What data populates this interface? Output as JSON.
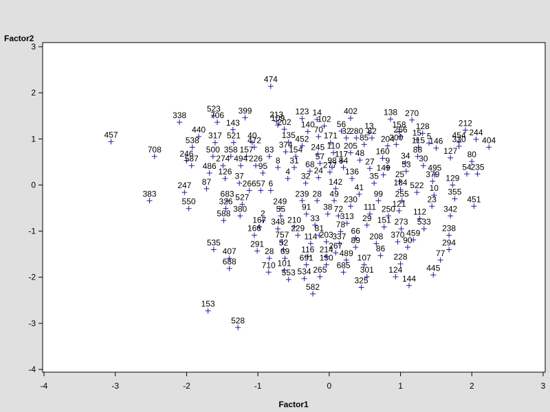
{
  "chart_data": {
    "type": "scatter",
    "title": "",
    "xlabel": "Factor1",
    "ylabel": "Factor2",
    "xlim": [
      -4,
      3
    ],
    "ylim": [
      -4,
      3
    ],
    "xticks": [
      "-4",
      "-3",
      "-2",
      "-1",
      "0",
      "1",
      "2",
      "3"
    ],
    "yticks": [
      "-4",
      "-3",
      "-2",
      "-1",
      "0",
      "1",
      "2",
      "3"
    ],
    "grid": false,
    "marker": "+",
    "marker_color": "#1a1aa6",
    "points": [
      {
        "label": "474",
        "x": -0.82,
        "y": 2.14
      },
      {
        "label": "213",
        "x": -0.74,
        "y": 1.38
      },
      {
        "label": "523",
        "x": -1.62,
        "y": 1.5
      },
      {
        "label": "399",
        "x": -1.18,
        "y": 1.46
      },
      {
        "label": "123",
        "x": -0.38,
        "y": 1.44
      },
      {
        "label": "14",
        "x": -0.17,
        "y": 1.42
      },
      {
        "label": "402",
        "x": 0.3,
        "y": 1.45
      },
      {
        "label": "138",
        "x": 0.86,
        "y": 1.43
      },
      {
        "label": "270",
        "x": 1.16,
        "y": 1.41
      },
      {
        "label": "338",
        "x": -2.1,
        "y": 1.36
      },
      {
        "label": "706",
        "x": -1.57,
        "y": 1.36
      },
      {
        "label": "109",
        "x": -0.72,
        "y": 1.3
      },
      {
        "label": "102",
        "x": -0.07,
        "y": 1.28
      },
      {
        "label": "158",
        "x": 0.98,
        "y": 1.16
      },
      {
        "label": "212",
        "x": 1.91,
        "y": 1.19
      },
      {
        "label": "143",
        "x": -1.35,
        "y": 1.2
      },
      {
        "label": "202",
        "x": -0.63,
        "y": 1.21
      },
      {
        "label": "140",
        "x": -0.3,
        "y": 1.16
      },
      {
        "label": "56",
        "x": 0.17,
        "y": 1.17
      },
      {
        "label": "13",
        "x": 0.56,
        "y": 1.13
      },
      {
        "label": "128",
        "x": 1.31,
        "y": 1.12
      },
      {
        "label": "440",
        "x": -1.83,
        "y": 1.05
      },
      {
        "label": "70",
        "x": -0.15,
        "y": 1.05
      },
      {
        "label": "32",
        "x": 0.24,
        "y": 1.02
      },
      {
        "label": "280",
        "x": 0.38,
        "y": 1.02
      },
      {
        "label": "82",
        "x": 0.6,
        "y": 1.02
      },
      {
        "label": "266",
        "x": 1.0,
        "y": 1.05
      },
      {
        "label": "15",
        "x": 1.23,
        "y": 0.98
      },
      {
        "label": "244",
        "x": 2.06,
        "y": 0.99
      },
      {
        "label": "457",
        "x": -3.06,
        "y": 0.94
      },
      {
        "label": "317",
        "x": -1.6,
        "y": 0.92
      },
      {
        "label": "521",
        "x": -1.34,
        "y": 0.92
      },
      {
        "label": "40",
        "x": -1.08,
        "y": 0.92
      },
      {
        "label": "135",
        "x": -0.57,
        "y": 0.93
      },
      {
        "label": "171",
        "x": 0.02,
        "y": 0.92
      },
      {
        "label": "5",
        "x": 1.4,
        "y": 0.91
      },
      {
        "label": "454",
        "x": 1.82,
        "y": 0.93
      },
      {
        "label": "538",
        "x": -1.92,
        "y": 0.82
      },
      {
        "label": "472",
        "x": -1.05,
        "y": 0.82
      },
      {
        "label": "452",
        "x": -0.38,
        "y": 0.85
      },
      {
        "label": "85",
        "x": 0.49,
        "y": 0.88
      },
      {
        "label": "204",
        "x": 0.82,
        "y": 0.85
      },
      {
        "label": "300",
        "x": 0.94,
        "y": 0.88
      },
      {
        "label": "115",
        "x": 1.25,
        "y": 0.82
      },
      {
        "label": "146",
        "x": 1.5,
        "y": 0.8
      },
      {
        "label": "330",
        "x": 1.82,
        "y": 0.84
      },
      {
        "label": "404",
        "x": 2.24,
        "y": 0.82
      },
      {
        "label": "708",
        "x": -2.45,
        "y": 0.62
      },
      {
        "label": "500",
        "x": -1.63,
        "y": 0.62
      },
      {
        "label": "358",
        "x": -1.38,
        "y": 0.62
      },
      {
        "label": "157",
        "x": -1.16,
        "y": 0.62
      },
      {
        "label": "83",
        "x": -0.84,
        "y": 0.62
      },
      {
        "label": "374",
        "x": -0.61,
        "y": 0.72
      },
      {
        "label": "154",
        "x": -0.47,
        "y": 0.62
      },
      {
        "label": "245",
        "x": -0.16,
        "y": 0.67
      },
      {
        "label": "110",
        "x": 0.06,
        "y": 0.7
      },
      {
        "label": "205",
        "x": 0.3,
        "y": 0.7
      },
      {
        "label": "88",
        "x": 1.24,
        "y": 0.62
      },
      {
        "label": "127",
        "x": 1.7,
        "y": 0.59
      },
      {
        "label": "246",
        "x": -2.0,
        "y": 0.53
      },
      {
        "label": "57",
        "x": -0.13,
        "y": 0.47
      },
      {
        "label": "117",
        "x": 0.17,
        "y": 0.52
      },
      {
        "label": "48",
        "x": 0.43,
        "y": 0.54
      },
      {
        "label": "160",
        "x": 0.75,
        "y": 0.58
      },
      {
        "label": "34",
        "x": 1.07,
        "y": 0.48
      },
      {
        "label": "80",
        "x": 2.0,
        "y": 0.51
      },
      {
        "label": "587",
        "x": -1.93,
        "y": 0.42
      },
      {
        "label": "274",
        "x": -1.49,
        "y": 0.42
      },
      {
        "label": "494",
        "x": -1.24,
        "y": 0.42
      },
      {
        "label": "226",
        "x": -1.03,
        "y": 0.42
      },
      {
        "label": "8",
        "x": -0.72,
        "y": 0.38
      },
      {
        "label": "31",
        "x": -0.49,
        "y": 0.38
      },
      {
        "label": "98",
        "x": 0.04,
        "y": 0.38
      },
      {
        "label": "84",
        "x": 0.2,
        "y": 0.38
      },
      {
        "label": "27",
        "x": 0.57,
        "y": 0.36
      },
      {
        "label": "9",
        "x": 0.82,
        "y": 0.38
      },
      {
        "label": "30",
        "x": 1.32,
        "y": 0.42
      },
      {
        "label": "486",
        "x": -1.68,
        "y": 0.26
      },
      {
        "label": "95",
        "x": -0.93,
        "y": 0.26
      },
      {
        "label": "68",
        "x": -0.27,
        "y": 0.3
      },
      {
        "label": "277",
        "x": 0.01,
        "y": 0.28
      },
      {
        "label": "53",
        "x": 1.08,
        "y": 0.3
      },
      {
        "label": "54",
        "x": 1.93,
        "y": 0.24
      },
      {
        "label": "235",
        "x": 2.08,
        "y": 0.24
      },
      {
        "label": "126",
        "x": -1.46,
        "y": 0.14
      },
      {
        "label": "4",
        "x": -0.58,
        "y": 0.14
      },
      {
        "label": "24",
        "x": -0.15,
        "y": 0.16
      },
      {
        "label": "136",
        "x": 0.32,
        "y": 0.14
      },
      {
        "label": "149",
        "x": 0.76,
        "y": 0.22
      },
      {
        "label": "495",
        "x": 1.48,
        "y": 0.22
      },
      {
        "label": "37",
        "x": -1.26,
        "y": 0.04
      },
      {
        "label": "32",
        "x": -0.33,
        "y": 0.04
      },
      {
        "label": "35",
        "x": 0.63,
        "y": 0.04
      },
      {
        "label": "25",
        "x": 0.99,
        "y": 0.08
      },
      {
        "label": "379",
        "x": 1.45,
        "y": 0.08
      },
      {
        "label": "129",
        "x": 1.73,
        "y": 0.0
      },
      {
        "label": "247",
        "x": -2.03,
        "y": -0.16
      },
      {
        "label": "87",
        "x": -1.72,
        "y": -0.08
      },
      {
        "label": "266",
        "x": -1.12,
        "y": -0.12
      },
      {
        "label": "57",
        "x": -0.96,
        "y": -0.12
      },
      {
        "label": "6",
        "x": -0.82,
        "y": -0.12
      },
      {
        "label": "142",
        "x": 0.09,
        "y": -0.08
      },
      {
        "label": "41",
        "x": 0.42,
        "y": -0.2
      },
      {
        "label": "184",
        "x": 1.0,
        "y": -0.1
      },
      {
        "label": "522",
        "x": 1.23,
        "y": -0.16
      },
      {
        "label": "10",
        "x": 1.47,
        "y": -0.22
      },
      {
        "label": "383",
        "x": -2.52,
        "y": -0.34
      },
      {
        "label": "683",
        "x": -1.43,
        "y": -0.34
      },
      {
        "label": "239",
        "x": -0.38,
        "y": -0.34
      },
      {
        "label": "28",
        "x": -0.17,
        "y": -0.34
      },
      {
        "label": "49",
        "x": 0.07,
        "y": -0.34
      },
      {
        "label": "99",
        "x": 0.69,
        "y": -0.34
      },
      {
        "label": "255",
        "x": 1.02,
        "y": -0.34
      },
      {
        "label": "355",
        "x": 1.76,
        "y": -0.3
      },
      {
        "label": "550",
        "x": -1.97,
        "y": -0.51
      },
      {
        "label": "326",
        "x": -1.45,
        "y": -0.51
      },
      {
        "label": "527",
        "x": -1.22,
        "y": -0.42
      },
      {
        "label": "249",
        "x": -0.69,
        "y": -0.51
      },
      {
        "label": "230",
        "x": 0.3,
        "y": -0.46
      },
      {
        "label": "121",
        "x": 0.98,
        "y": -0.56
      },
      {
        "label": "23",
        "x": 1.44,
        "y": -0.46
      },
      {
        "label": "451",
        "x": 2.03,
        "y": -0.46
      },
      {
        "label": "380",
        "x": -1.25,
        "y": -0.67
      },
      {
        "label": "55",
        "x": -0.68,
        "y": -0.67
      },
      {
        "label": "91",
        "x": -0.32,
        "y": -0.63
      },
      {
        "label": "38",
        "x": -0.02,
        "y": -0.63
      },
      {
        "label": "72",
        "x": 0.13,
        "y": -0.67
      },
      {
        "label": "111",
        "x": 0.57,
        "y": -0.63
      },
      {
        "label": "250",
        "x": 0.83,
        "y": -0.67
      },
      {
        "label": "342",
        "x": 1.7,
        "y": -0.67
      },
      {
        "label": "588",
        "x": -1.48,
        "y": -0.77
      },
      {
        "label": "2",
        "x": -0.93,
        "y": -0.77
      },
      {
        "label": "112",
        "x": 1.27,
        "y": -0.73
      },
      {
        "label": "167",
        "x": -0.98,
        "y": -0.91
      },
      {
        "label": "348",
        "x": -0.72,
        "y": -0.95
      },
      {
        "label": "210",
        "x": -0.49,
        "y": -0.91
      },
      {
        "label": "33",
        "x": -0.2,
        "y": -0.87
      },
      {
        "label": "313",
        "x": 0.25,
        "y": -0.83
      },
      {
        "label": "29",
        "x": 0.53,
        "y": -0.87
      },
      {
        "label": "151",
        "x": 0.77,
        "y": -0.91
      },
      {
        "label": "273",
        "x": 1.01,
        "y": -0.95
      },
      {
        "label": "533",
        "x": 1.33,
        "y": -0.95
      },
      {
        "label": "166",
        "x": -1.05,
        "y": -1.09
      },
      {
        "label": "229",
        "x": -0.44,
        "y": -1.09
      },
      {
        "label": "81",
        "x": -0.14,
        "y": -1.09
      },
      {
        "label": "78",
        "x": 0.16,
        "y": -1.01
      },
      {
        "label": "238",
        "x": 1.68,
        "y": -1.09
      },
      {
        "label": "757",
        "x": -0.66,
        "y": -1.23
      },
      {
        "label": "203",
        "x": -0.04,
        "y": -1.23
      },
      {
        "label": "114",
        "x": -0.26,
        "y": -1.27
      },
      {
        "label": "337",
        "x": 0.14,
        "y": -1.27
      },
      {
        "label": "66",
        "x": 0.37,
        "y": -1.15
      },
      {
        "label": "208",
        "x": 0.66,
        "y": -1.27
      },
      {
        "label": "370",
        "x": 0.96,
        "y": -1.23
      },
      {
        "label": "459",
        "x": 1.18,
        "y": -1.19
      },
      {
        "label": "535",
        "x": -1.62,
        "y": -1.4
      },
      {
        "label": "291",
        "x": -1.01,
        "y": -1.43
      },
      {
        "label": "52",
        "x": -0.64,
        "y": -1.4
      },
      {
        "label": "267",
        "x": 0.09,
        "y": -1.47
      },
      {
        "label": "89",
        "x": 0.37,
        "y": -1.35
      },
      {
        "label": "90",
        "x": 1.1,
        "y": -1.35
      },
      {
        "label": "294",
        "x": 1.68,
        "y": -1.4
      },
      {
        "label": "407",
        "x": -1.4,
        "y": -1.59
      },
      {
        "label": "28",
        "x": -0.84,
        "y": -1.59
      },
      {
        "label": "69",
        "x": -0.62,
        "y": -1.59
      },
      {
        "label": "116",
        "x": -0.3,
        "y": -1.55
      },
      {
        "label": "214",
        "x": -0.04,
        "y": -1.55
      },
      {
        "label": "489",
        "x": 0.24,
        "y": -1.63
      },
      {
        "label": "86",
        "x": 0.72,
        "y": -1.53
      },
      {
        "label": "77",
        "x": 1.56,
        "y": -1.63
      },
      {
        "label": "688",
        "x": -1.4,
        "y": -1.81
      },
      {
        "label": "691",
        "x": -0.32,
        "y": -1.73
      },
      {
        "label": "150",
        "x": -0.04,
        "y": -1.73
      },
      {
        "label": "107",
        "x": 0.49,
        "y": -1.73
      },
      {
        "label": "228",
        "x": 1.0,
        "y": -1.71
      },
      {
        "label": "710",
        "x": -0.85,
        "y": -1.89
      },
      {
        "label": "101",
        "x": -0.63,
        "y": -1.85
      },
      {
        "label": "685",
        "x": 0.2,
        "y": -1.89
      },
      {
        "label": "445",
        "x": 1.46,
        "y": -1.95
      },
      {
        "label": "553",
        "x": -0.57,
        "y": -2.05
      },
      {
        "label": "534",
        "x": -0.35,
        "y": -2.03
      },
      {
        "label": "265",
        "x": -0.13,
        "y": -1.99
      },
      {
        "label": "301",
        "x": 0.53,
        "y": -1.99
      },
      {
        "label": "124",
        "x": 0.93,
        "y": -1.99
      },
      {
        "label": "144",
        "x": 1.12,
        "y": -2.18
      },
      {
        "label": "325",
        "x": 0.45,
        "y": -2.22
      },
      {
        "label": "582",
        "x": -0.23,
        "y": -2.36
      },
      {
        "label": "153",
        "x": -1.7,
        "y": -2.73
      },
      {
        "label": "528",
        "x": -1.28,
        "y": -3.09
      }
    ]
  }
}
